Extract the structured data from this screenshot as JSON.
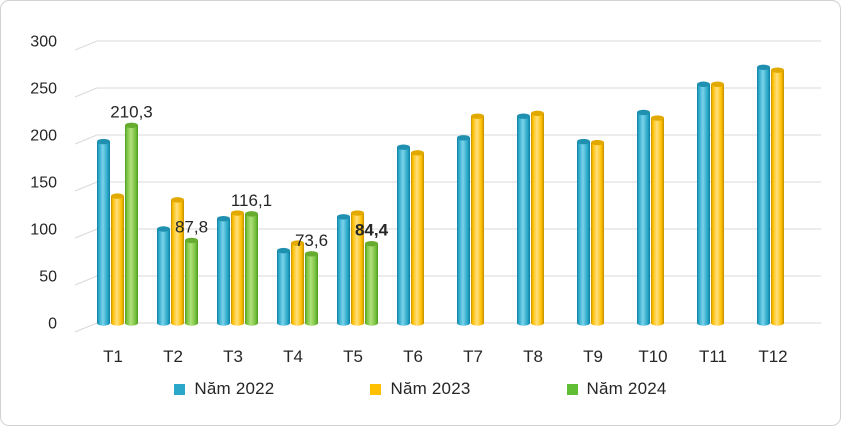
{
  "chart_data": {
    "type": "bar",
    "style": "3d-cylinder",
    "title": "",
    "xlabel": "",
    "ylabel": "",
    "categories": [
      "T1",
      "T2",
      "T3",
      "T4",
      "T5",
      "T6",
      "T7",
      "T8",
      "T9",
      "T10",
      "T11",
      "T12"
    ],
    "series": [
      {
        "name": "Năm 2022",
        "color": "#2BA8C9",
        "shades": {
          "dark": "#0F7FA0",
          "body": "#2BA8C9",
          "light": "#7AD3EA",
          "cap": "#1F90B0"
        },
        "values": [
          193,
          100,
          111,
          77,
          113,
          187,
          197,
          220,
          193,
          224,
          254,
          272
        ]
      },
      {
        "name": "Năm 2023",
        "color": "#FFC000",
        "shades": {
          "dark": "#C18E00",
          "body": "#FFC000",
          "light": "#FFDF7E",
          "cap": "#E2A900"
        },
        "values": [
          135,
          131,
          117,
          85,
          117,
          181,
          220,
          223,
          192,
          218,
          254,
          269
        ]
      },
      {
        "name": "Năm 2024",
        "color": "#5FBE33",
        "shades": {
          "dark": "#4E9A1F",
          "body": "#79C23F",
          "light": "#B0E07C",
          "cap": "#67AC2F"
        },
        "values": [
          210.3,
          87.8,
          116.1,
          73.6,
          84.4,
          null,
          null,
          null,
          null,
          null,
          null,
          null
        ],
        "data_labels": [
          "210,3",
          "87,8",
          "116,1",
          "73,6",
          "84,4",
          null,
          null,
          null,
          null,
          null,
          null,
          null
        ],
        "data_label_bold": [
          false,
          false,
          false,
          false,
          true,
          false,
          false,
          false,
          false,
          false,
          false,
          false
        ]
      }
    ],
    "ylim": [
      0,
      300
    ],
    "ytick_step": 50,
    "yticks": [
      "0",
      "50",
      "100",
      "150",
      "200",
      "250",
      "300"
    ],
    "grid": true,
    "grid_color": "#D9D9D9",
    "axis_text_color": "#262626",
    "background": "#FFFFFF",
    "legend_position": "bottom"
  }
}
